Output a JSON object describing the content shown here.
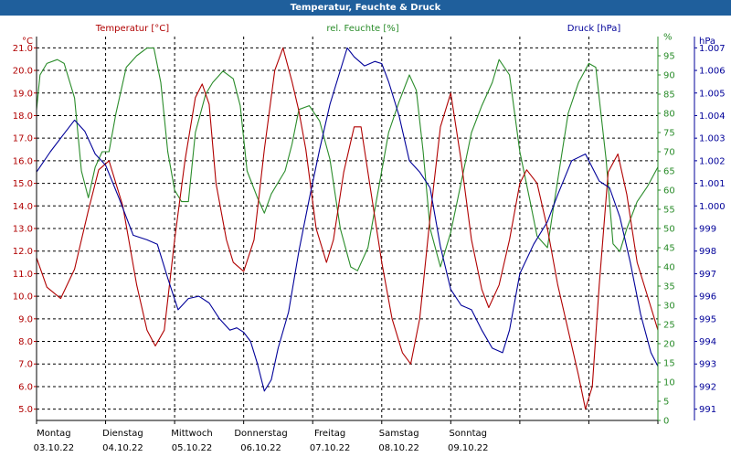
{
  "window": {
    "title": "Temperatur, Feuchte & Druck"
  },
  "chart_data": {
    "type": "line",
    "title": "Temperatur, Feuchte & Druck",
    "series": [
      {
        "name": "Temperatur [°C]",
        "unit_label": "°C",
        "axis": "left",
        "color": "#b00000",
        "y_ticks": [
          "5.0",
          "6.0",
          "7.0",
          "8.0",
          "9.0",
          "10.0",
          "11.0",
          "12.0",
          "13.0",
          "14.0",
          "15.0",
          "16.0",
          "17.0",
          "18.0",
          "19.0",
          "20.0",
          "21.0"
        ],
        "ylim": [
          4.5,
          21.5
        ],
        "points": [
          [
            0,
            11.7
          ],
          [
            0.15,
            10.4
          ],
          [
            0.35,
            9.9
          ],
          [
            0.55,
            11.2
          ],
          [
            0.75,
            13.8
          ],
          [
            0.9,
            15.6
          ],
          [
            1.05,
            16.0
          ],
          [
            1.25,
            14.0
          ],
          [
            1.45,
            10.5
          ],
          [
            1.6,
            8.5
          ],
          [
            1.72,
            7.8
          ],
          [
            1.85,
            8.5
          ],
          [
            2.0,
            12.5
          ],
          [
            2.15,
            16.0
          ],
          [
            2.3,
            18.8
          ],
          [
            2.4,
            19.4
          ],
          [
            2.5,
            18.5
          ],
          [
            2.6,
            15.0
          ],
          [
            2.75,
            12.5
          ],
          [
            2.85,
            11.5
          ],
          [
            3.0,
            11.1
          ],
          [
            3.15,
            12.5
          ],
          [
            3.3,
            16.5
          ],
          [
            3.45,
            20.0
          ],
          [
            3.57,
            21.0
          ],
          [
            3.7,
            19.5
          ],
          [
            3.8,
            18.2
          ],
          [
            3.9,
            16.5
          ],
          [
            4.05,
            13.0
          ],
          [
            4.2,
            11.5
          ],
          [
            4.3,
            12.5
          ],
          [
            4.45,
            15.5
          ],
          [
            4.6,
            17.5
          ],
          [
            4.7,
            17.5
          ],
          [
            4.85,
            14.5
          ],
          [
            5.0,
            11.5
          ],
          [
            5.15,
            9.0
          ],
          [
            5.3,
            7.5
          ],
          [
            5.42,
            7.0
          ],
          [
            5.55,
            9.0
          ],
          [
            5.7,
            13.5
          ],
          [
            5.85,
            17.5
          ],
          [
            6.0,
            19.0
          ],
          [
            6.15,
            16.0
          ],
          [
            6.3,
            12.5
          ],
          [
            6.45,
            10.3
          ],
          [
            6.55,
            9.5
          ],
          [
            6.7,
            10.5
          ],
          [
            6.85,
            12.5
          ],
          [
            7.0,
            15.0
          ],
          [
            7.1,
            15.6
          ],
          [
            7.25,
            15.0
          ],
          [
            7.4,
            13.0
          ],
          [
            7.55,
            10.5
          ],
          [
            7.7,
            8.5
          ],
          [
            7.85,
            6.5
          ],
          [
            7.95,
            5.0
          ],
          [
            8.05,
            6.0
          ],
          [
            8.15,
            10.5
          ],
          [
            8.28,
            15.5
          ],
          [
            8.42,
            16.3
          ],
          [
            8.55,
            14.5
          ],
          [
            8.7,
            11.5
          ],
          [
            8.85,
            10.0
          ],
          [
            9.0,
            8.5
          ]
        ]
      },
      {
        "name": "rel. Feuchte [%]",
        "unit_label": "%",
        "axis": "right1",
        "color": "#2a8c2a",
        "y_ticks": [
          "0",
          "5",
          "10",
          "15",
          "20",
          "25",
          "30",
          "35",
          "40",
          "45",
          "50",
          "55",
          "60",
          "65",
          "70",
          "75",
          "80",
          "85",
          "90",
          "95",
          "%"
        ],
        "ylim": [
          0,
          100
        ],
        "points": [
          [
            0,
            81
          ],
          [
            0.05,
            90
          ],
          [
            0.15,
            93
          ],
          [
            0.3,
            94
          ],
          [
            0.4,
            93
          ],
          [
            0.55,
            84
          ],
          [
            0.65,
            65
          ],
          [
            0.75,
            58
          ],
          [
            0.85,
            66
          ],
          [
            0.95,
            70
          ],
          [
            1.05,
            70
          ],
          [
            1.15,
            80
          ],
          [
            1.3,
            92
          ],
          [
            1.45,
            95
          ],
          [
            1.6,
            97
          ],
          [
            1.7,
            97
          ],
          [
            1.8,
            88
          ],
          [
            1.9,
            70
          ],
          [
            2.0,
            60
          ],
          [
            2.1,
            57
          ],
          [
            2.2,
            57
          ],
          [
            2.3,
            75
          ],
          [
            2.45,
            85
          ],
          [
            2.55,
            88
          ],
          [
            2.7,
            91
          ],
          [
            2.85,
            89
          ],
          [
            2.95,
            82
          ],
          [
            3.05,
            65
          ],
          [
            3.2,
            58
          ],
          [
            3.3,
            54
          ],
          [
            3.4,
            59
          ],
          [
            3.5,
            62
          ],
          [
            3.6,
            65
          ],
          [
            3.7,
            72
          ],
          [
            3.8,
            81
          ],
          [
            3.95,
            82
          ],
          [
            4.1,
            78
          ],
          [
            4.25,
            68
          ],
          [
            4.4,
            50
          ],
          [
            4.55,
            40
          ],
          [
            4.65,
            39
          ],
          [
            4.8,
            45
          ],
          [
            4.95,
            60
          ],
          [
            5.1,
            75
          ],
          [
            5.25,
            83
          ],
          [
            5.4,
            90
          ],
          [
            5.5,
            86
          ],
          [
            5.6,
            70
          ],
          [
            5.7,
            50
          ],
          [
            5.85,
            40
          ],
          [
            6.0,
            49
          ],
          [
            6.15,
            62
          ],
          [
            6.3,
            75
          ],
          [
            6.45,
            82
          ],
          [
            6.6,
            88
          ],
          [
            6.7,
            94
          ],
          [
            6.85,
            90
          ],
          [
            7.0,
            70
          ],
          [
            7.15,
            57
          ],
          [
            7.25,
            48
          ],
          [
            7.4,
            45
          ],
          [
            7.5,
            57
          ],
          [
            7.7,
            80
          ],
          [
            7.85,
            88
          ],
          [
            8.0,
            93
          ],
          [
            8.1,
            92
          ],
          [
            8.25,
            68
          ],
          [
            8.35,
            46
          ],
          [
            8.45,
            44
          ],
          [
            8.55,
            50
          ],
          [
            8.7,
            57
          ],
          [
            8.85,
            61
          ],
          [
            9.0,
            66
          ]
        ]
      },
      {
        "name": "Druck [hPa]",
        "unit_label": "hPa",
        "axis": "right2",
        "color": "#000099",
        "y_ticks": [
          "991",
          "992",
          "993",
          "994",
          "995",
          "996",
          "997",
          "998",
          "999",
          "1.000",
          "1.001",
          "1.002",
          "1.003",
          "1.004",
          "1.005",
          "1.006",
          "1.007"
        ],
        "ylim": [
          990.5,
          1007.5
        ],
        "points": [
          [
            0,
            1001.5
          ],
          [
            0.2,
            1002.4
          ],
          [
            0.4,
            1003.2
          ],
          [
            0.55,
            1003.8
          ],
          [
            0.7,
            1003.3
          ],
          [
            0.85,
            1002.3
          ],
          [
            1.0,
            1001.8
          ],
          [
            1.2,
            1000.3
          ],
          [
            1.4,
            998.7
          ],
          [
            1.6,
            998.5
          ],
          [
            1.75,
            998.3
          ],
          [
            1.9,
            996.8
          ],
          [
            2.05,
            995.4
          ],
          [
            2.2,
            995.9
          ],
          [
            2.35,
            996.0
          ],
          [
            2.5,
            995.7
          ],
          [
            2.65,
            995.0
          ],
          [
            2.8,
            994.5
          ],
          [
            2.9,
            994.6
          ],
          [
            3.0,
            994.4
          ],
          [
            3.1,
            994.0
          ],
          [
            3.2,
            993.0
          ],
          [
            3.3,
            991.8
          ],
          [
            3.4,
            992.3
          ],
          [
            3.5,
            993.7
          ],
          [
            3.65,
            995.3
          ],
          [
            3.8,
            998.0
          ],
          [
            3.95,
            1000.3
          ],
          [
            4.1,
            1002.5
          ],
          [
            4.25,
            1004.5
          ],
          [
            4.4,
            1006.0
          ],
          [
            4.5,
            1007.0
          ],
          [
            4.6,
            1006.6
          ],
          [
            4.75,
            1006.2
          ],
          [
            4.9,
            1006.4
          ],
          [
            5.0,
            1006.3
          ],
          [
            5.1,
            1005.5
          ],
          [
            5.25,
            1004.0
          ],
          [
            5.4,
            1002.0
          ],
          [
            5.55,
            1001.5
          ],
          [
            5.7,
            1000.8
          ],
          [
            5.85,
            998.2
          ],
          [
            6.0,
            996.3
          ],
          [
            6.15,
            995.6
          ],
          [
            6.3,
            995.4
          ],
          [
            6.45,
            994.5
          ],
          [
            6.6,
            993.7
          ],
          [
            6.75,
            993.5
          ],
          [
            6.85,
            994.5
          ],
          [
            7.0,
            997.0
          ],
          [
            7.2,
            998.3
          ],
          [
            7.4,
            999.3
          ],
          [
            7.55,
            1000.5
          ],
          [
            7.75,
            1002.0
          ],
          [
            7.95,
            1002.3
          ],
          [
            8.15,
            1001.1
          ],
          [
            8.3,
            1000.8
          ],
          [
            8.45,
            999.5
          ],
          [
            8.6,
            997.5
          ],
          [
            8.75,
            995.2
          ],
          [
            8.9,
            993.5
          ],
          [
            9.0,
            992.9
          ]
        ]
      }
    ],
    "x_labels": [
      {
        "day": "Montag",
        "date": "03.10.22"
      },
      {
        "day": "Dienstag",
        "date": "04.10.22"
      },
      {
        "day": "Mittwoch",
        "date": "05.10.22"
      },
      {
        "day": "Donnerstag",
        "date": "06.10.22"
      },
      {
        "day": "Freitag",
        "date": "07.10.22"
      },
      {
        "day": "Samstag",
        "date": "08.10.22"
      },
      {
        "day": "Sonntag",
        "date": "09.10.22"
      }
    ],
    "x_vlines": [
      1,
      2,
      3,
      4,
      5,
      6,
      7,
      8
    ],
    "xlim": [
      0,
      9
    ],
    "grid": true
  }
}
